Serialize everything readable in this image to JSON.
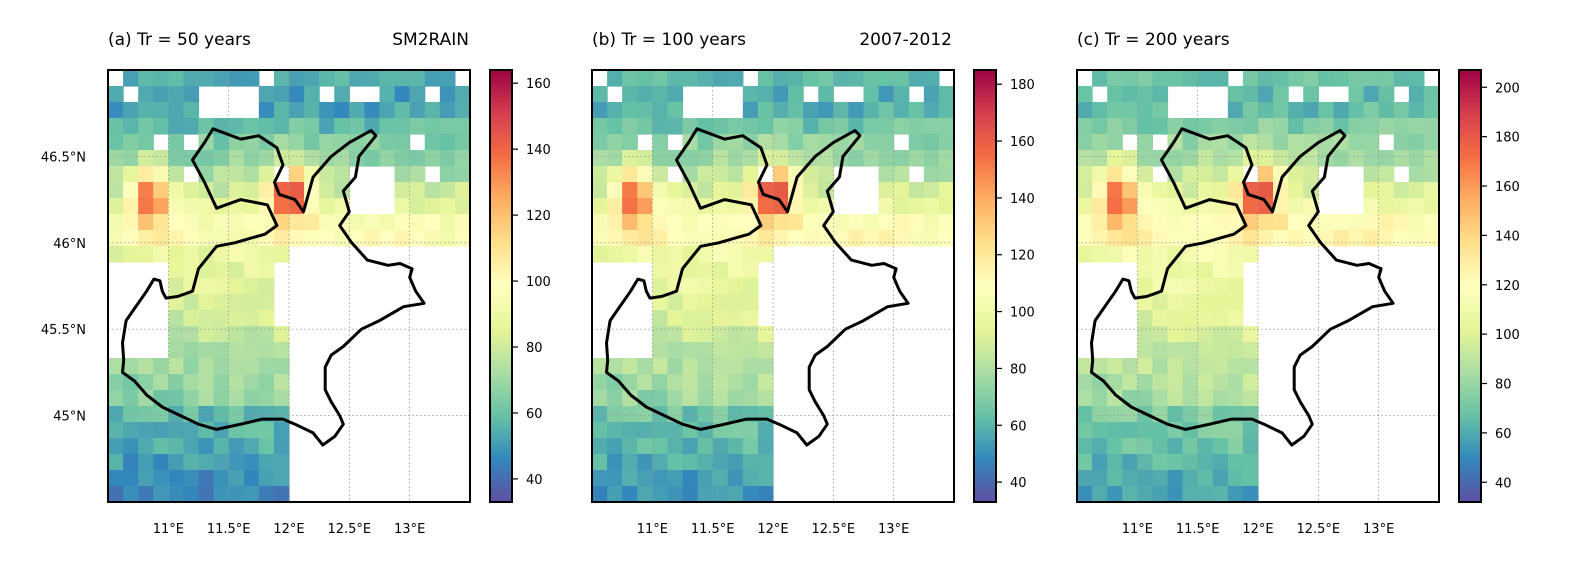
{
  "figure": {
    "panels": [
      {
        "title_left": "(a) Tr = 50 years",
        "title_right": "SM2RAIN",
        "colorbar": {
          "min": 33,
          "max": 164,
          "ticks": [
            "40",
            "60",
            "80",
            "100",
            "120",
            "140",
            "160"
          ],
          "tick_values": [
            40,
            60,
            80,
            100,
            120,
            140,
            160
          ]
        },
        "scale": 1.0
      },
      {
        "title_left": "(b) Tr = 100 years",
        "title_right": "2007-2012",
        "colorbar": {
          "min": 33,
          "max": 185,
          "ticks": [
            "40",
            "60",
            "80",
            "100",
            "120",
            "140",
            "160",
            "180"
          ],
          "tick_values": [
            40,
            60,
            80,
            100,
            120,
            140,
            160,
            180
          ]
        },
        "scale": 1.13
      },
      {
        "title_left": "(c) Tr = 200 years",
        "title_right": "",
        "colorbar": {
          "min": 32,
          "max": 207,
          "ticks": [
            "40",
            "60",
            "80",
            "100",
            "120",
            "140",
            "160",
            "180",
            "200"
          ],
          "tick_values": [
            40,
            60,
            80,
            100,
            120,
            140,
            160,
            180,
            200
          ]
        },
        "scale": 1.26
      }
    ],
    "x_ticks": [
      "11°E",
      "11.5°E",
      "12°E",
      "12.5°E",
      "13°E"
    ],
    "x_tick_values": [
      11.0,
      11.5,
      12.0,
      12.5,
      13.0
    ],
    "y_ticks": [
      "46.5°N",
      "46°N",
      "45.5°N",
      "45°N"
    ],
    "y_tick_values": [
      46.5,
      46.0,
      45.5,
      45.0
    ],
    "colormap": "Spectral_r",
    "gridlines": true
  },
  "chart_data": {
    "type": "heatmap",
    "variable": "rainfall return level map over north-east Italy",
    "lon_range": [
      10.5,
      13.5
    ],
    "lat_range": [
      44.5,
      47.0
    ],
    "colormap": "Spectral_r",
    "panels": [
      {
        "title": "(a) Tr = 50 years",
        "subtitle": "SM2RAIN",
        "value_range": [
          33,
          164
        ]
      },
      {
        "title": "(b) Tr = 100 years",
        "subtitle": "2007-2012",
        "value_range": [
          33,
          185
        ]
      },
      {
        "title": "(c) Tr = 200 years",
        "subtitle": "",
        "value_range": [
          32,
          207
        ]
      }
    ]
  }
}
